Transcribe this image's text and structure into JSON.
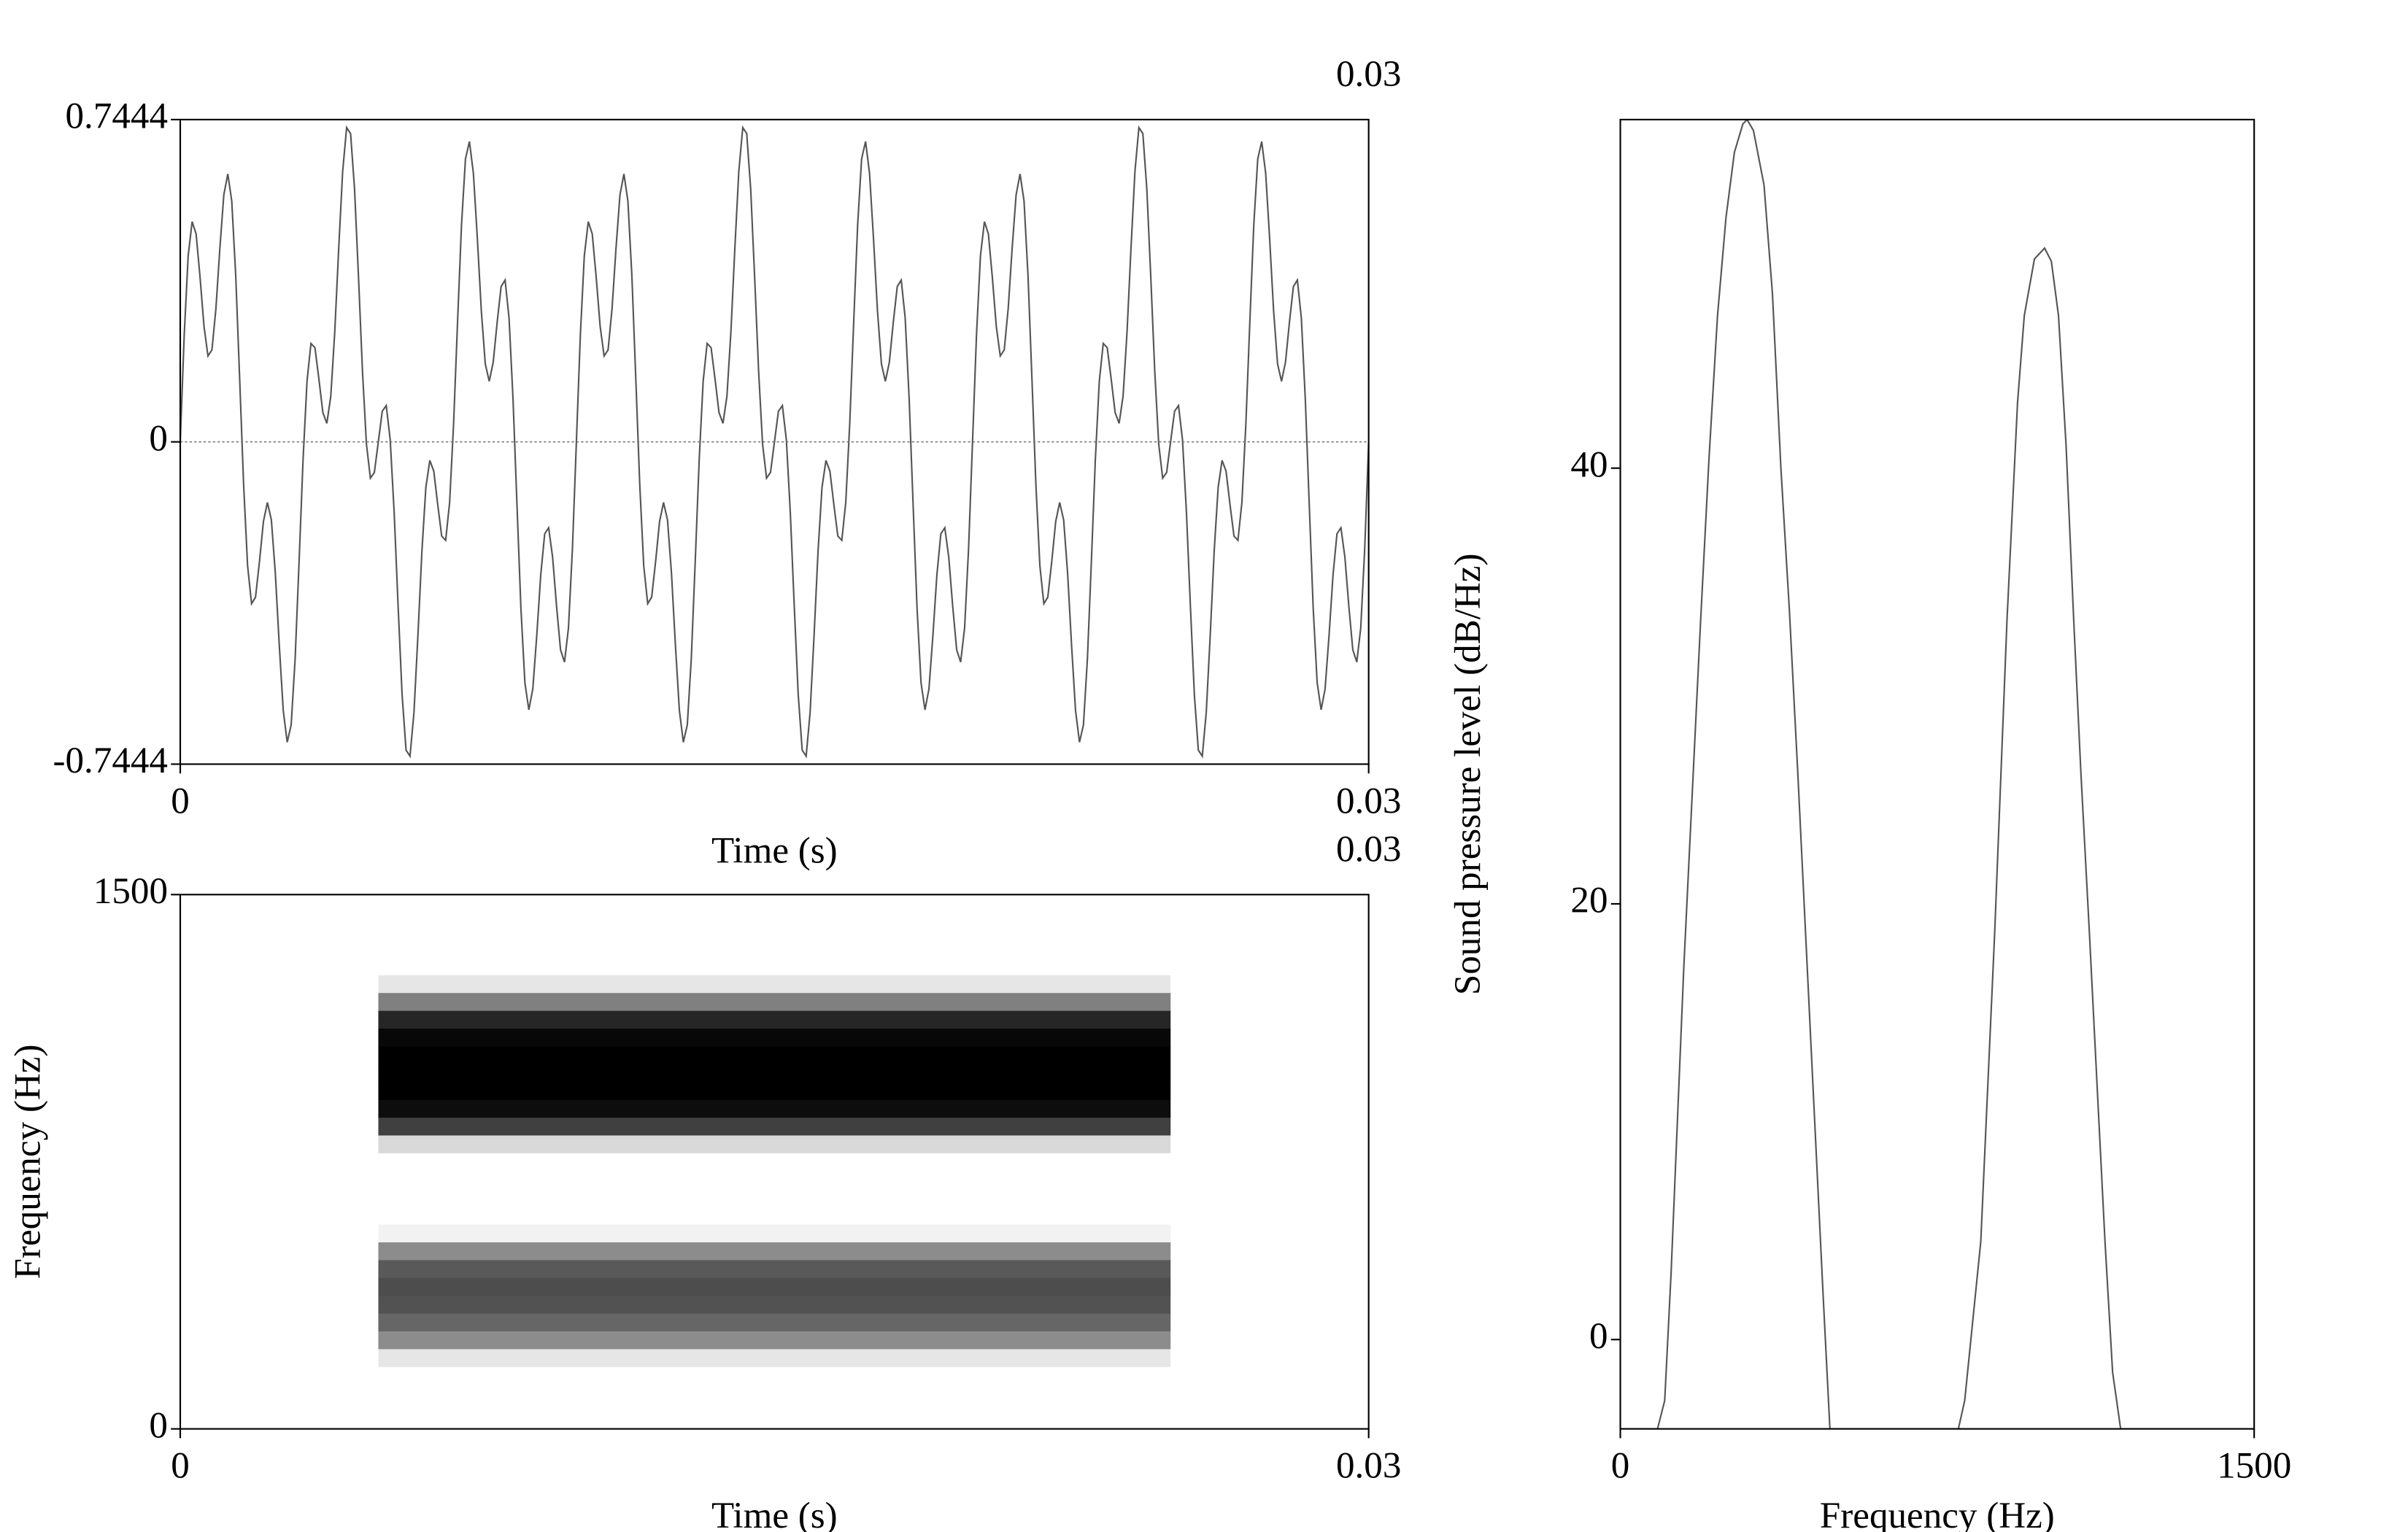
{
  "chart_data": [
    {
      "type": "waveform",
      "xlabel": "Time (s)",
      "xlim": [
        0,
        0.03
      ],
      "ylim": [
        -0.7444,
        0.7444
      ],
      "xticks": [
        0,
        0.03
      ],
      "yticks": [
        -0.7444,
        0,
        0.7444
      ],
      "zero_line": true,
      "color": "#555555",
      "x": [
        0,
        0.0001,
        0.0002,
        0.0003,
        0.0004,
        0.0005,
        0.0006,
        0.0007,
        0.0008,
        0.0009,
        0.001,
        0.0011,
        0.0012,
        0.0013,
        0.0014,
        0.0015,
        0.0016,
        0.0017,
        0.0018,
        0.0019,
        0.002,
        0.0021,
        0.0022,
        0.0023,
        0.0024,
        0.0025,
        0.0026,
        0.0027,
        0.0028,
        0.0029,
        0.003,
        0.0031,
        0.0032,
        0.0033,
        0.0034,
        0.0035,
        0.0036,
        0.0037,
        0.0038,
        0.0039,
        0.004,
        0.0041,
        0.0042,
        0.0043,
        0.0044,
        0.0045,
        0.0046,
        0.0047,
        0.0048,
        0.0049,
        0.005,
        0.0051,
        0.0052,
        0.0053,
        0.0054,
        0.0055,
        0.0056,
        0.0057,
        0.0058,
        0.0059,
        0.006,
        0.0061,
        0.0062,
        0.0063,
        0.0064,
        0.0065,
        0.0066,
        0.0067,
        0.0068,
        0.0069,
        0.007,
        0.0071,
        0.0072,
        0.0073,
        0.0074,
        0.0075,
        0.0076,
        0.0077,
        0.0078,
        0.0079,
        0.008,
        0.0081,
        0.0082,
        0.0083,
        0.0084,
        0.0085,
        0.0086,
        0.0087,
        0.0088,
        0.0089,
        0.009,
        0.0091,
        0.0092,
        0.0093,
        0.0094,
        0.0095,
        0.0096,
        0.0097,
        0.0098,
        0.0099,
        0.01,
        0.0101,
        0.0102,
        0.0103,
        0.0104,
        0.0105,
        0.0106,
        0.0107,
        0.0108,
        0.0109,
        0.011,
        0.0111,
        0.0112,
        0.0113,
        0.0114,
        0.0115,
        0.0116,
        0.0117,
        0.0118,
        0.0119,
        0.012,
        0.0121,
        0.0122,
        0.0123,
        0.0124,
        0.0125,
        0.0126,
        0.0127,
        0.0128,
        0.0129,
        0.013,
        0.0131,
        0.0132,
        0.0133,
        0.0134,
        0.0135,
        0.0136,
        0.0137,
        0.0138,
        0.0139,
        0.014,
        0.0141,
        0.0142,
        0.0143,
        0.0144,
        0.0145,
        0.0146,
        0.0147,
        0.0148,
        0.0149,
        0.015,
        0.0151,
        0.0152,
        0.0153,
        0.0154,
        0.0155,
        0.0156,
        0.0157,
        0.0158,
        0.0159,
        0.016,
        0.0161,
        0.0162,
        0.0163,
        0.0164,
        0.0165,
        0.0166,
        0.0167,
        0.0168,
        0.0169,
        0.017,
        0.0171,
        0.0172,
        0.0173,
        0.0174,
        0.0175,
        0.0176,
        0.0177,
        0.0178,
        0.0179,
        0.018,
        0.0181,
        0.0182,
        0.0183,
        0.0184,
        0.0185,
        0.0186,
        0.0187,
        0.0188,
        0.0189,
        0.019,
        0.0191,
        0.0192,
        0.0193,
        0.0194,
        0.0195,
        0.0196,
        0.0197,
        0.0198,
        0.0199,
        0.02,
        0.0201,
        0.0202,
        0.0203,
        0.0204,
        0.0205,
        0.0206,
        0.0207,
        0.0208,
        0.0209,
        0.021,
        0.0211,
        0.0212,
        0.0213,
        0.0214,
        0.0215,
        0.0216,
        0.0217,
        0.0218,
        0.0219,
        0.022,
        0.0221,
        0.0222,
        0.0223,
        0.0224,
        0.0225,
        0.0226,
        0.0227,
        0.0228,
        0.0229,
        0.023,
        0.0231,
        0.0232,
        0.0233,
        0.0234,
        0.0235,
        0.0236,
        0.0237,
        0.0238,
        0.0239,
        0.024,
        0.0241,
        0.0242,
        0.0243,
        0.0244,
        0.0245,
        0.0246,
        0.0247,
        0.0248,
        0.0249,
        0.025,
        0.0251,
        0.0252,
        0.0253,
        0.0254,
        0.0255,
        0.0256,
        0.0257,
        0.0258,
        0.0259,
        0.026,
        0.0261,
        0.0262,
        0.0263,
        0.0264,
        0.0265,
        0.0266,
        0.0267,
        0.0268,
        0.0269,
        0.027,
        0.0271,
        0.0272,
        0.0273,
        0.0274,
        0.0275,
        0.0276,
        0.0277,
        0.0278,
        0.0279,
        0.028,
        0.0281,
        0.0282,
        0.0283,
        0.0284,
        0.0285,
        0.0286,
        0.0287,
        0.0288,
        0.0289,
        0.029,
        0.0291,
        0.0292,
        0.0293,
        0.0294,
        0.0295,
        0.0296,
        0.0297,
        0.0298,
        0.0299,
        0.03
      ],
      "values": [
        0,
        0.2468,
        0.4298,
        0.5086,
        0.4804,
        0.3802,
        0.2666,
        0.1984,
        0.2123,
        0.3076,
        0.447,
        0.5706,
        0.6189,
        0.5564,
        0.3851,
        0.1452,
        -0.0998,
        -0.2863,
        -0.3737,
        -0.3588,
        -0.2763,
        -0.1839,
        -0.14,
        -0.1802,
        -0.303,
        -0.47,
        -0.6204,
        -0.6938,
        -0.6536,
        -0.5013,
        -0.2763,
        -0.0414,
        0.1399,
        0.2273,
        0.2176,
        0.1452,
        0.0677,
        0.0428,
        0.1053,
        0.2532,
        0.447,
        0.625,
        0.7259,
        0.712,
        0.584,
        0.3802,
        0.163,
        -0.005,
        -0.0838,
        -0.0706,
        0,
        0.0706,
        0.0838,
        0.005,
        -0.163,
        -0.3802,
        -0.584,
        -0.712,
        -0.7259,
        -0.625,
        -0.447,
        -0.2532,
        -0.1053,
        -0.0428,
        -0.0677,
        -0.1452,
        -0.2176,
        -0.2273,
        -0.1399,
        0.0414,
        0.2763,
        0.5013,
        0.6536,
        0.6938,
        0.6204,
        0.47,
        0.303,
        0.1802,
        0.14,
        0.1839,
        0.2763,
        0.3588,
        0.3737,
        0.2863,
        0.0998,
        -0.1452,
        -0.3851,
        -0.5564,
        -0.6189,
        -0.5706,
        -0.447,
        -0.3076,
        -0.2123,
        -0.1984,
        -0.2666,
        -0.3802,
        -0.4804,
        -0.5086,
        -0.4298,
        -0.2468,
        0,
        0.2468,
        0.4298,
        0.5086,
        0.4804,
        0.3802,
        0.2666,
        0.1984,
        0.2123,
        0.3076,
        0.447,
        0.5706,
        0.6189,
        0.5564,
        0.3851,
        0.1452,
        -0.0998,
        -0.2863,
        -0.3737,
        -0.3588,
        -0.2763,
        -0.1839,
        -0.14,
        -0.1802,
        -0.303,
        -0.47,
        -0.6204,
        -0.6938,
        -0.6536,
        -0.5013,
        -0.2763,
        -0.0414,
        0.1399,
        0.2273,
        0.2176,
        0.1452,
        0.0677,
        0.0428,
        0.1053,
        0.2532,
        0.447,
        0.625,
        0.7259,
        0.712,
        0.584,
        0.3802,
        0.163,
        -0.005,
        -0.0838,
        -0.0706,
        0,
        0.0706,
        0.0838,
        0.005,
        -0.163,
        -0.3802,
        -0.584,
        -0.712,
        -0.7259,
        -0.625,
        -0.447,
        -0.2532,
        -0.1053,
        -0.0428,
        -0.0677,
        -0.1452,
        -0.2176,
        -0.2273,
        -0.1399,
        0.0414,
        0.2763,
        0.5013,
        0.6536,
        0.6938,
        0.6204,
        0.47,
        0.303,
        0.1802,
        0.14,
        0.1839,
        0.2763,
        0.3588,
        0.3737,
        0.2863,
        0.0998,
        -0.1452,
        -0.3851,
        -0.5564,
        -0.6189,
        -0.5706,
        -0.447,
        -0.3076,
        -0.2123,
        -0.1984,
        -0.2666,
        -0.3802,
        -0.4804,
        -0.5086,
        -0.4298,
        -0.2468,
        0,
        0.2468,
        0.4298,
        0.5086,
        0.4804,
        0.3802,
        0.2666,
        0.1984,
        0.2123,
        0.3076,
        0.447,
        0.5706,
        0.6189,
        0.5564,
        0.3851,
        0.1452,
        -0.0998,
        -0.2863,
        -0.3737,
        -0.3588,
        -0.2763,
        -0.1839,
        -0.14,
        -0.1802,
        -0.303,
        -0.47,
        -0.6204,
        -0.6938,
        -0.6536,
        -0.5013,
        -0.2763,
        -0.0414,
        0.1399,
        0.2273,
        0.2176,
        0.1452,
        0.0677,
        0.0428,
        0.1053,
        0.2532,
        0.447,
        0.625,
        0.7259,
        0.712,
        0.584,
        0.3802,
        0.163,
        -0.005,
        -0.0838,
        -0.0706,
        0,
        0.0706,
        0.0838,
        0.005,
        -0.163,
        -0.3802,
        -0.584,
        -0.712,
        -0.7259,
        -0.625,
        -0.447,
        -0.2532,
        -0.1053,
        -0.0428,
        -0.0677,
        -0.1452,
        -0.2176,
        -0.2273,
        -0.1399,
        0.0414,
        0.2763,
        0.5013,
        0.6536,
        0.6938,
        0.6204,
        0.47,
        0.303,
        0.1802,
        0.14,
        0.1839,
        0.2763,
        0.3588,
        0.3737,
        0.2863,
        0.0998,
        -0.1452,
        -0.3851,
        -0.5564,
        -0.6189,
        -0.5706,
        -0.447,
        -0.3076,
        -0.2123,
        -0.1984,
        -0.2666,
        -0.3802,
        -0.4804,
        -0.5086,
        -0.4298,
        -0.2468,
        0
      ]
    },
    {
      "type": "spectrogram",
      "xlabel": "Time (s)",
      "ylabel": "Frequency (Hz)",
      "xlim": [
        0,
        0.03
      ],
      "ylim": [
        0,
        1500
      ],
      "xticks": [
        0,
        0.03
      ],
      "yticks": [
        0,
        1500
      ],
      "frames": [
        0.005,
        0.025
      ],
      "frequencies": [
        0,
        50,
        100,
        150,
        200,
        250,
        300,
        350,
        400,
        450,
        500,
        550,
        600,
        650,
        700,
        750,
        800,
        850,
        900,
        950,
        1000,
        1050,
        1100,
        1150,
        1200,
        1250,
        1300,
        1350,
        1400,
        1450,
        1500
      ],
      "values": [
        0,
        0,
        0,
        0,
        0.1,
        0.45,
        0.6,
        0.68,
        0.7,
        0.65,
        0.45,
        0.05,
        0,
        0,
        0,
        0,
        0.15,
        0.75,
        0.95,
        1,
        1,
        1,
        0.97,
        0.85,
        0.5,
        0.1,
        0,
        0,
        0,
        0,
        0
      ]
    },
    {
      "type": "spectrum",
      "xlabel": "Frequency (Hz)",
      "ylabel": "Sound pressure level (dB/Hz)",
      "xlim": [
        0,
        1500
      ],
      "ylim": [
        -4.1,
        56
      ],
      "xticks": [
        0,
        1500
      ],
      "yticks": [
        0,
        20,
        40
      ],
      "color": "#555555",
      "x": [
        0,
        88,
        105,
        120,
        135,
        150,
        170,
        190,
        210,
        230,
        250,
        270,
        290,
        300,
        315,
        330,
        340,
        360,
        380,
        400,
        420,
        440,
        460,
        480,
        496,
        800,
        815,
        853,
        886,
        915,
        940,
        956,
        980,
        1004,
        1020,
        1037,
        1055,
        1073,
        1090,
        1110,
        1130,
        1147,
        1165,
        1184,
        1500
      ],
      "values": [
        -4.1,
        -4.1,
        -2.8,
        3,
        10,
        17,
        25,
        33,
        40.5,
        47,
        51.5,
        54.5,
        55.8,
        56,
        55.5,
        54,
        53,
        48,
        40,
        33.5,
        26,
        18,
        10,
        2,
        -4.1,
        -4.1,
        -2.8,
        4.5,
        18.7,
        33,
        43,
        47,
        49.6,
        50.1,
        49.5,
        47,
        41,
        33,
        26,
        18.7,
        11,
        4.5,
        -1.5,
        -4.1,
        -4.1
      ]
    }
  ]
}
